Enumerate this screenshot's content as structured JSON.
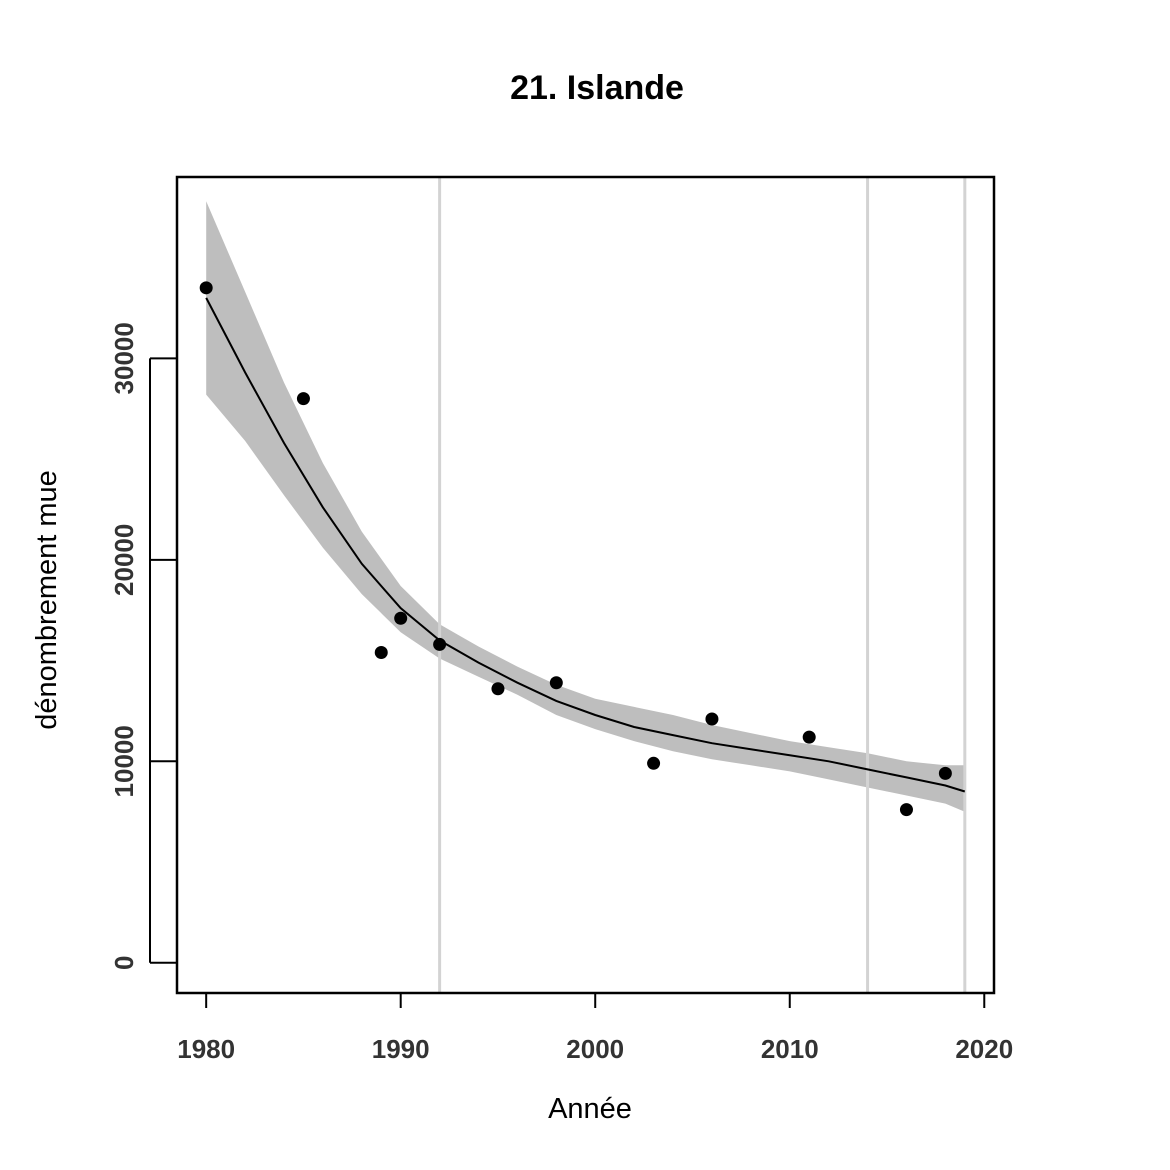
{
  "chart_data": {
    "type": "scatter",
    "title": "21. Islande",
    "xlabel": "Année",
    "ylabel": "dénombrement mue",
    "xlim": [
      1978.5,
      2020.5
    ],
    "ylim": [
      -1500,
      39000
    ],
    "x_ticks": [
      1980,
      1990,
      2000,
      2010,
      2020
    ],
    "y_ticks": [
      0,
      10000,
      20000,
      30000
    ],
    "x_tick_labels": [
      "1980",
      "1990",
      "2000",
      "2010",
      "2020"
    ],
    "y_tick_labels": [
      "0",
      "10000",
      "20000",
      "30000"
    ],
    "grid": false,
    "legend": "none",
    "colors": {
      "points": "#000000",
      "fit_line": "#000000",
      "confidence_band": "#bebebe",
      "reference_lines": "#d3d3d3",
      "frame": "#000000"
    },
    "observations": [
      {
        "x": 1980,
        "y": 33500
      },
      {
        "x": 1985,
        "y": 28000
      },
      {
        "x": 1989,
        "y": 15400
      },
      {
        "x": 1990,
        "y": 17100
      },
      {
        "x": 1992,
        "y": 15800
      },
      {
        "x": 1995,
        "y": 13600
      },
      {
        "x": 1998,
        "y": 13900
      },
      {
        "x": 2003,
        "y": 9900
      },
      {
        "x": 2006,
        "y": 12100
      },
      {
        "x": 2011,
        "y": 11200
      },
      {
        "x": 2016,
        "y": 7600
      },
      {
        "x": 2018,
        "y": 9400
      }
    ],
    "fit": {
      "x": [
        1980,
        1982,
        1984,
        1986,
        1988,
        1990,
        1992,
        1994,
        1996,
        1998,
        2000,
        2002,
        2004,
        2006,
        2008,
        2010,
        2012,
        2014,
        2016,
        2018,
        2019
      ],
      "y": [
        33000,
        29300,
        25800,
        22600,
        19800,
        17600,
        16000,
        14900,
        13900,
        13000,
        12300,
        11700,
        11300,
        10900,
        10600,
        10300,
        10000,
        9600,
        9200,
        8800,
        8500
      ],
      "lower": [
        28200,
        25900,
        23200,
        20600,
        18300,
        16400,
        15100,
        14200,
        13300,
        12300,
        11600,
        11000,
        10500,
        10100,
        9800,
        9500,
        9100,
        8700,
        8300,
        7900,
        7500
      ],
      "upper": [
        37800,
        33300,
        28800,
        24800,
        21400,
        18700,
        16800,
        15700,
        14700,
        13800,
        13100,
        12700,
        12300,
        11800,
        11400,
        11000,
        10700,
        10400,
        10000,
        9800,
        9800
      ]
    },
    "reference_lines_x": [
      1992,
      2014,
      2019
    ]
  }
}
